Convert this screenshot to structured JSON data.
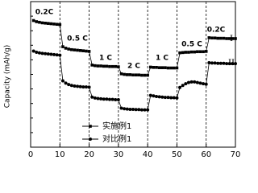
{
  "chart_data": {
    "type": "line",
    "y_label": "Capacity (mAh/g)",
    "x": [
      1,
      2,
      3,
      4,
      5,
      6,
      7,
      8,
      9,
      10,
      11,
      12,
      13,
      14,
      15,
      16,
      17,
      18,
      19,
      20,
      21,
      22,
      23,
      24,
      25,
      26,
      27,
      28,
      29,
      30,
      31,
      32,
      33,
      34,
      35,
      36,
      37,
      38,
      39,
      40,
      41,
      42,
      43,
      44,
      45,
      46,
      47,
      48,
      49,
      50,
      51,
      52,
      53,
      54,
      55,
      56,
      57,
      58,
      59,
      60,
      61,
      62,
      63,
      64,
      65,
      66,
      67,
      68,
      69,
      70
    ],
    "series": [
      {
        "name": "实施例1",
        "color": "#000000",
        "marker": "square",
        "values": [
          735,
          731,
          729,
          727,
          726,
          725,
          724,
          723,
          722,
          721,
          645,
          640,
          637,
          635,
          634,
          633,
          632,
          631,
          630,
          629,
          582,
          580,
          579,
          579,
          578,
          578,
          577,
          577,
          577,
          576,
          552,
          550,
          549,
          549,
          548,
          548,
          548,
          547,
          547,
          547,
          575,
          574,
          574,
          573,
          573,
          573,
          572,
          572,
          572,
          572,
          624,
          625,
          626,
          626,
          627,
          627,
          628,
          628,
          628,
          629,
          676,
          675,
          675,
          674,
          674,
          674,
          673,
          673,
          673,
          673
        ]
      },
      {
        "name": "对比例1",
        "color": "#000000",
        "marker": "circle",
        "values": [
          630,
          626,
          624,
          622,
          621,
          620,
          619,
          618,
          617,
          616,
          528,
          520,
          515,
          512,
          510,
          509,
          508,
          507,
          507,
          506,
          472,
          469,
          467,
          466,
          465,
          465,
          464,
          464,
          463,
          463,
          434,
          432,
          431,
          430,
          430,
          429,
          429,
          428,
          428,
          428,
          478,
          476,
          474,
          473,
          472,
          471,
          471,
          470,
          470,
          469,
          505,
          512,
          518,
          522,
          524,
          524,
          522,
          520,
          518,
          516,
          590,
          589,
          589,
          588,
          588,
          588,
          587,
          587,
          587,
          587
        ]
      }
    ],
    "annotations": [
      "0.2C",
      "0.5 C",
      "1 C",
      "2 C",
      "1 C",
      "0.5 C",
      "0.2C",
      "I",
      "II"
    ],
    "xlim": [
      0,
      70
    ],
    "xticks": [
      0,
      10,
      20,
      30,
      40,
      50,
      60,
      70
    ],
    "ylim": [
      300,
      800
    ],
    "dividers": [
      10,
      20,
      30,
      40,
      50,
      60
    ]
  }
}
